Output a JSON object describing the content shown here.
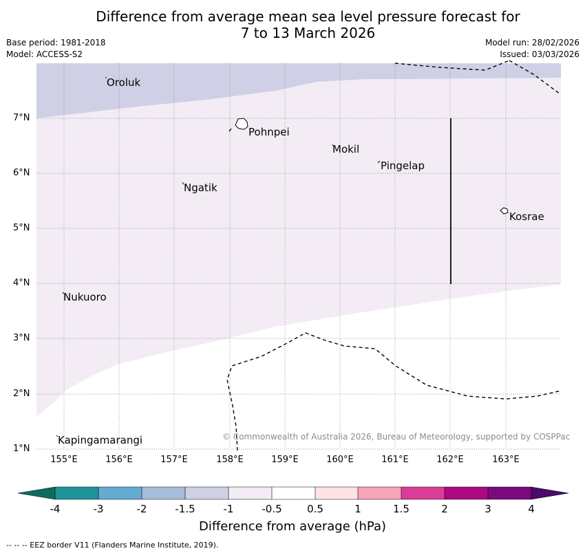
{
  "header": {
    "title_line1": "Difference from average mean sea level pressure forecast for",
    "title_line2": "7 to 13 March 2026",
    "base_period": "Base period: 1981-2018",
    "model": "Model: ACCESS-S2",
    "model_run": "Model run: 28/02/2026",
    "issued": "Issued: 03/03/2026"
  },
  "map": {
    "lat_labels": [
      "7°N",
      "6°N",
      "5°N",
      "4°N",
      "3°N",
      "2°N",
      "1°N"
    ],
    "lon_labels": [
      "155°E",
      "156°E",
      "157°E",
      "158°E",
      "159°E",
      "160°E",
      "161°E",
      "162°E",
      "163°E"
    ],
    "places": {
      "oroluk": "Oroluk",
      "pohnpei": "Pohnpei",
      "mokil": "Mokil",
      "pingelap": "Pingelap",
      "ngatik": "Ngatik",
      "kosrae": "Kosrae",
      "nukuoro": "Nukuoro",
      "kapingamarangi": "Kapingamarangi"
    },
    "copyright": "© Commonwealth of Australia 2026, Bureau of Meteorology, supported by COSPPac",
    "colors": {
      "band_minus_1_5_to_minus_1": "#cfd0e5",
      "band_minus_1_to_minus_0_5": "#f3ecf5",
      "band_minus_0_5_to_0_5": "#ffffff"
    }
  },
  "colorbar": {
    "ticks": [
      "-4",
      "-3",
      "-2",
      "-1.5",
      "-1",
      "-0.5",
      "0.5",
      "1",
      "1.5",
      "2",
      "3",
      "4"
    ],
    "colors": [
      "#1d9497",
      "#64abd1",
      "#a7bbdb",
      "#cfd0e5",
      "#f3ecf5",
      "#ffffff",
      "#fee3e4",
      "#f8a4b8",
      "#da3c97",
      "#ae0883",
      "#7b0b7d"
    ],
    "under_color": "#0e6b60",
    "over_color": "#4a0a6b",
    "title": "Difference from average (hPa)"
  },
  "footnote": "--  --  -- EEZ border V11 (Flanders Marine Institute, 2019)."
}
